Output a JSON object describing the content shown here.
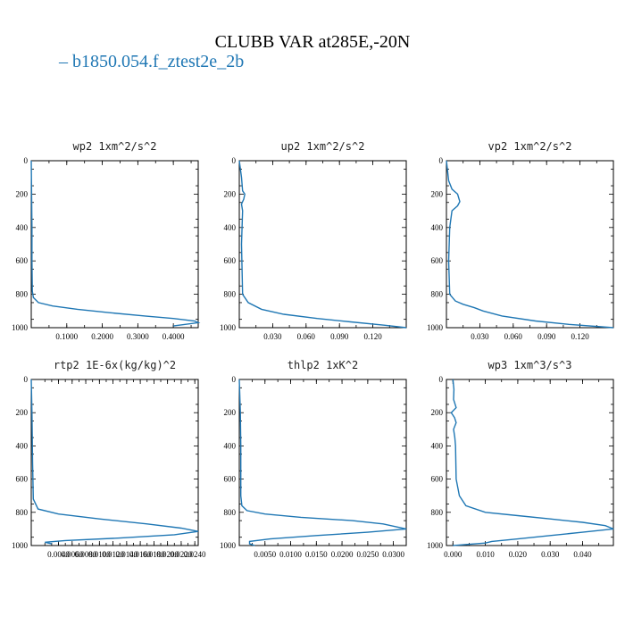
{
  "figure": {
    "title": "CLUBB VAR at285E,-20N",
    "legend_label": "b1850.054.f_ztest2e_2b",
    "line_color": "#1f77b4"
  },
  "chart_data": [
    {
      "type": "line",
      "title": "wp2  1xm^2/s^2",
      "xlim": [
        0,
        0.47
      ],
      "ylim": [
        0,
        1000
      ],
      "y_inverted": true,
      "xticks": [
        0.1,
        0.2,
        0.3,
        0.4
      ],
      "xtick_labels": [
        "0.1000",
        "0.2000",
        "0.3000",
        "0.4000"
      ],
      "yticks": [
        0,
        200,
        400,
        600,
        800,
        1000
      ],
      "series": [
        {
          "x": [
            0,
            0.001,
            0.002,
            0.002,
            0.003,
            0.006,
            0.02,
            0.06,
            0.13,
            0.22,
            0.32,
            0.4,
            0.46,
            0.47,
            0.4
          ],
          "y": [
            0,
            200,
            400,
            600,
            780,
            820,
            850,
            870,
            890,
            910,
            930,
            945,
            960,
            970,
            990
          ]
        }
      ]
    },
    {
      "type": "line",
      "title": "up2  1xm^2/s^2",
      "xlim": [
        0,
        0.15
      ],
      "ylim": [
        0,
        1000
      ],
      "y_inverted": true,
      "xticks": [
        0.03,
        0.06,
        0.09,
        0.12
      ],
      "xtick_labels": [
        "0.030",
        "0.060",
        "0.090",
        "0.120"
      ],
      "yticks": [
        0,
        200,
        400,
        600,
        800,
        1000
      ],
      "series": [
        {
          "x": [
            0,
            0.002,
            0.003,
            0.005,
            0.004,
            0.002,
            0.003,
            0.002,
            0.003,
            0.008,
            0.02,
            0.04,
            0.07,
            0.1,
            0.13,
            0.15
          ],
          "y": [
            0,
            100,
            180,
            200,
            230,
            260,
            300,
            500,
            800,
            850,
            890,
            920,
            945,
            965,
            985,
            1000
          ]
        }
      ]
    },
    {
      "type": "line",
      "title": "vp2  1xm^2/s^2",
      "xlim": [
        0,
        0.15
      ],
      "ylim": [
        0,
        1000
      ],
      "y_inverted": true,
      "xticks": [
        0.03,
        0.06,
        0.09,
        0.12
      ],
      "xtick_labels": [
        "0.030",
        "0.060",
        "0.090",
        "0.120"
      ],
      "yticks": [
        0,
        200,
        400,
        600,
        800,
        1000
      ],
      "series": [
        {
          "x": [
            0,
            0.002,
            0.005,
            0.01,
            0.012,
            0.01,
            0.005,
            0.003,
            0.002,
            0.003,
            0.008,
            0.015,
            0.025,
            0.033,
            0.05,
            0.08,
            0.11,
            0.15
          ],
          "y": [
            0,
            120,
            170,
            200,
            245,
            270,
            300,
            400,
            600,
            800,
            840,
            860,
            880,
            900,
            930,
            960,
            980,
            1000
          ]
        }
      ]
    },
    {
      "type": "line",
      "title": "rtp2  1E-6x(kg/kg)^2",
      "xlim": [
        0,
        0.0245
      ],
      "ylim": [
        0,
        1000
      ],
      "y_inverted": true,
      "xticks": [
        0.004,
        0.006,
        0.008,
        0.01,
        0.012,
        0.014,
        0.016,
        0.018,
        0.02,
        0.022,
        0.024
      ],
      "xtick_labels": [
        "0.0040",
        "0.0060",
        "0.0080",
        "0.0100",
        "0.0120",
        "0.0140",
        "0.0160",
        "0.0180",
        "0.0200",
        "0.0220",
        "0.0240"
      ],
      "yticks": [
        0,
        200,
        400,
        600,
        800,
        1000
      ],
      "series": [
        {
          "x": [
            0,
            0.0001,
            0.0002,
            0.0003,
            0.001,
            0.004,
            0.01,
            0.017,
            0.022,
            0.0245,
            0.021,
            0.013,
            0.005,
            0.002,
            0.003
          ],
          "y": [
            0,
            200,
            500,
            720,
            780,
            810,
            840,
            870,
            895,
            915,
            935,
            955,
            970,
            980,
            990
          ]
        }
      ]
    },
    {
      "type": "line",
      "title": "thlp2  1xK^2",
      "xlim": [
        0,
        0.0325
      ],
      "ylim": [
        0,
        1000
      ],
      "y_inverted": true,
      "xticks": [
        0.005,
        0.01,
        0.015,
        0.02,
        0.025,
        0.03
      ],
      "xtick_labels": [
        "0.0050",
        "0.0100",
        "0.0150",
        "0.0200",
        "0.0250",
        "0.0300"
      ],
      "yticks": [
        0,
        200,
        400,
        600,
        800,
        1000
      ],
      "series": [
        {
          "x": [
            0,
            0.0002,
            0.0003,
            0.0003,
            0.0005,
            0.0015,
            0.005,
            0.012,
            0.022,
            0.028,
            0.0325,
            0.025,
            0.015,
            0.006,
            0.002,
            0.002,
            0.003
          ],
          "y": [
            0,
            200,
            400,
            700,
            760,
            790,
            810,
            830,
            850,
            870,
            900,
            920,
            940,
            960,
            975,
            990,
            1000
          ]
        }
      ]
    },
    {
      "type": "line",
      "title": "wp3  1xm^3/s^3",
      "xlim": [
        -0.002,
        0.0495
      ],
      "ylim": [
        0,
        1000
      ],
      "y_inverted": true,
      "xticks": [
        0,
        0.01,
        0.02,
        0.03,
        0.04
      ],
      "xtick_labels": [
        "0.000",
        "0.010",
        "0.020",
        "0.030",
        "0.040"
      ],
      "yticks": [
        0,
        200,
        400,
        600,
        800,
        1000
      ],
      "series": [
        {
          "x": [
            0,
            0.0003,
            0.0002,
            0.001,
            -0.0005,
            0.0005,
            0.001,
            0.0002,
            0.0006,
            0.0008,
            0.001,
            0.002,
            0.004,
            0.01,
            0.02,
            0.03,
            0.04,
            0.047,
            0.0495,
            0.04,
            0.03,
            0.02,
            0.012,
            0.01,
            0
          ],
          "y": [
            0,
            60,
            120,
            170,
            200,
            230,
            260,
            300,
            350,
            400,
            600,
            700,
            760,
            800,
            820,
            840,
            860,
            880,
            900,
            920,
            940,
            960,
            975,
            985,
            1000
          ]
        }
      ]
    }
  ]
}
